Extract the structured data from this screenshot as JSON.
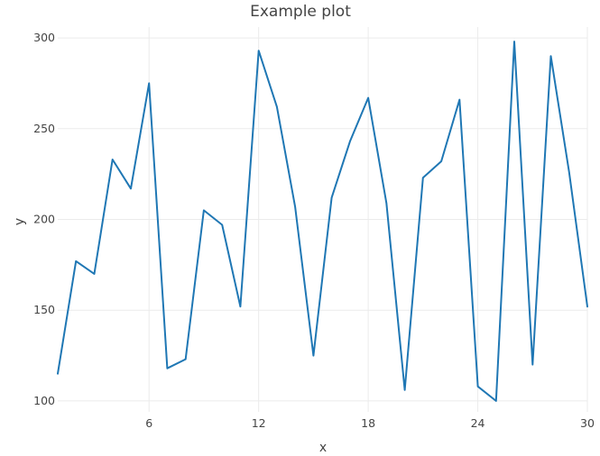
{
  "chart_data": {
    "type": "line",
    "title": "Example plot",
    "xlabel": "x",
    "ylabel": "y",
    "xlim": [
      1,
      30
    ],
    "ylim": [
      94,
      306
    ],
    "x_ticks": [
      6,
      12,
      18,
      24,
      30
    ],
    "y_ticks": [
      100,
      150,
      200,
      250,
      300
    ],
    "grid": true,
    "series": [
      {
        "color": "#1f77b4",
        "x": [
          1,
          2,
          3,
          4,
          5,
          6,
          7,
          8,
          9,
          10,
          11,
          12,
          13,
          14,
          15,
          16,
          17,
          18,
          19,
          20,
          21,
          22,
          23,
          24,
          25,
          26,
          27,
          28,
          29,
          30
        ],
        "y": [
          115,
          177,
          170,
          233,
          217,
          275,
          118,
          123,
          205,
          197,
          152,
          293,
          262,
          207,
          125,
          212,
          243,
          267,
          209,
          106,
          223,
          232,
          266,
          108,
          100,
          298,
          120,
          290,
          226,
          152
        ]
      }
    ]
  }
}
